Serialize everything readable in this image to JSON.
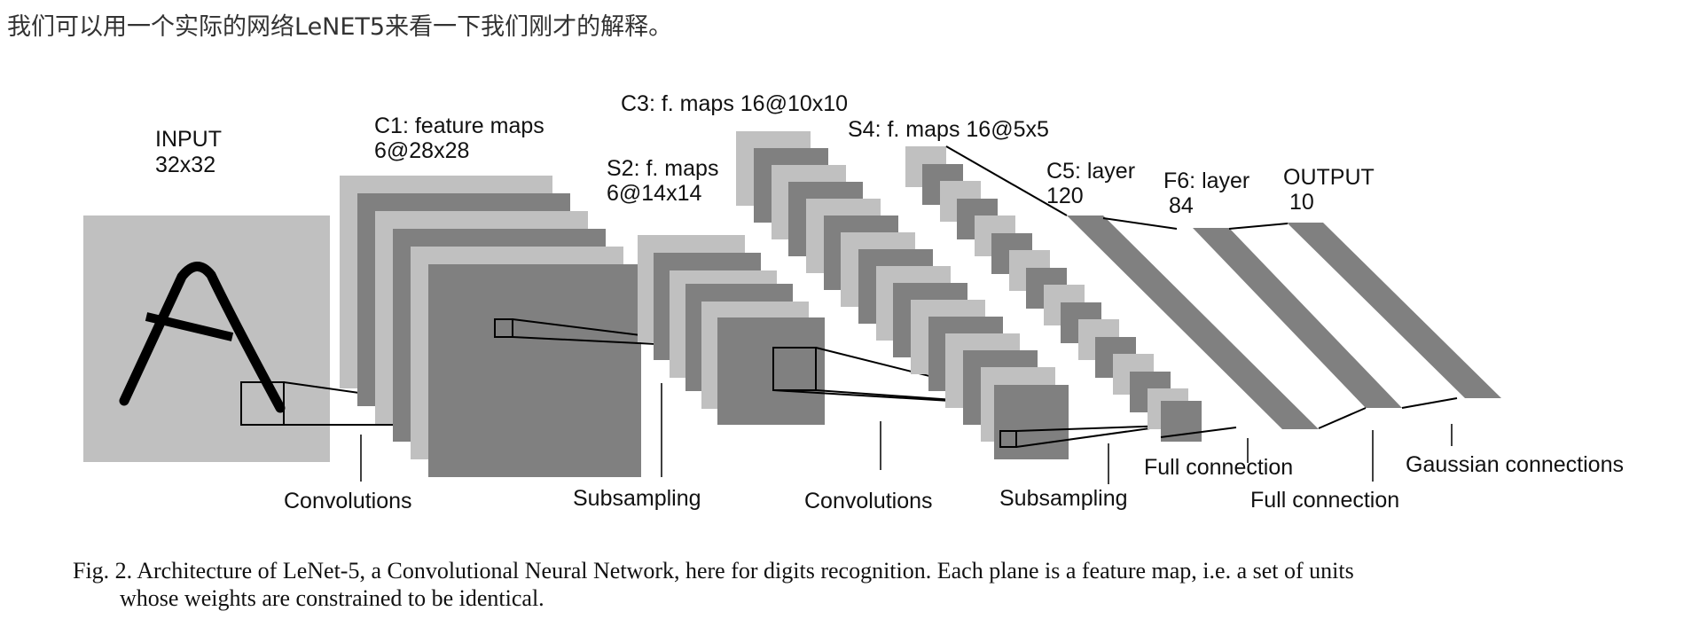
{
  "intro_text": "我们可以用一个实际的网络LeNET5来看一下我们刚才的解释。",
  "layers": {
    "input": {
      "title": "INPUT",
      "size": "32x32"
    },
    "c1": {
      "title": "C1: feature maps",
      "size": "6@28x28"
    },
    "s2": {
      "title": "S2: f. maps",
      "size": "6@14x14"
    },
    "c3": {
      "title": "C3: f. maps 16@10x10"
    },
    "s4": {
      "title": "S4: f. maps 16@5x5"
    },
    "c5": {
      "title": "C5: layer",
      "size": "120"
    },
    "f6": {
      "title": "F6: layer",
      "size": "84"
    },
    "output": {
      "title": "OUTPUT",
      "size": "10"
    }
  },
  "operations": {
    "convolutions_1": "Convolutions",
    "subsampling_1": "Subsampling",
    "convolutions_2": "Convolutions",
    "subsampling_2": "Subsampling",
    "full_connection_1": "Full connection",
    "full_connection_2": "Full connection",
    "gaussian": "Gaussian connections"
  },
  "caption": {
    "line1": "Fig. 2.   Architecture of LeNet-5, a Convolutional Neural Network, here for digits recognition. Each plane is a feature map, i.e. a set of units",
    "line2": "whose weights are constrained to be identical."
  },
  "colors": {
    "light_gray": "#c0c0c0",
    "dark_gray": "#808080",
    "stroke": "#000000",
    "intro_text": "#333333"
  }
}
